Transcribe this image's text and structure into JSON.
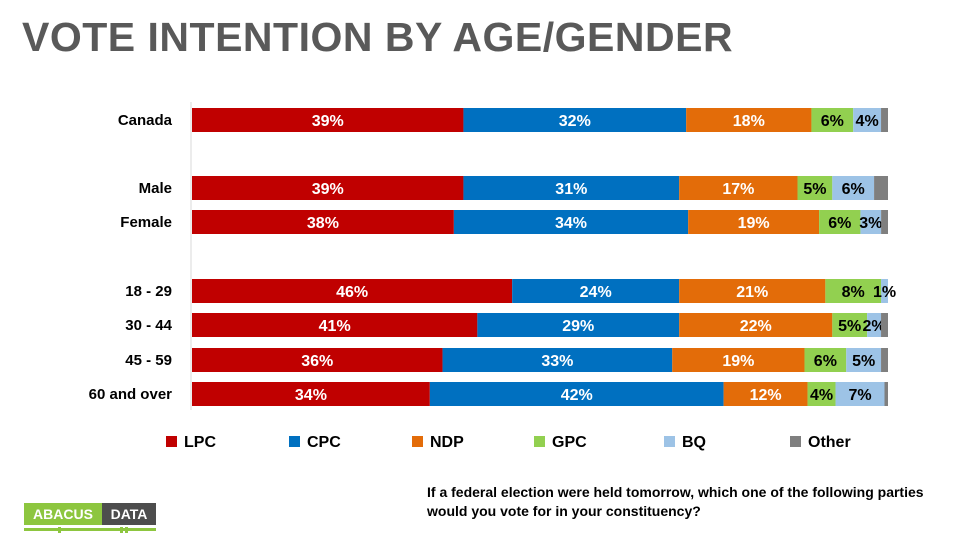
{
  "title": "VOTE INTENTION BY AGE/GENDER",
  "question": "If a federal election were held tomorrow, which one of the following parties would you vote for in your constituency?",
  "logo": {
    "left": "ABACUS",
    "right": "DATA"
  },
  "chart_data": {
    "type": "bar",
    "orientation": "horizontal",
    "stacked": true,
    "percent_scale": true,
    "legend_position": "bottom",
    "categories": [
      "Canada",
      "Male",
      "Female",
      "18 - 29",
      "30 - 44",
      "45 - 59",
      "60 and over"
    ],
    "series": [
      {
        "name": "LPC",
        "color": "#c00000",
        "values": [
          39,
          39,
          38,
          46,
          41,
          36,
          34
        ]
      },
      {
        "name": "CPC",
        "color": "#0070c0",
        "values": [
          32,
          31,
          34,
          24,
          29,
          33,
          42
        ]
      },
      {
        "name": "NDP",
        "color": "#e36c09",
        "values": [
          18,
          17,
          19,
          21,
          22,
          19,
          12
        ]
      },
      {
        "name": "GPC",
        "color": "#92d050",
        "values": [
          6,
          5,
          6,
          8,
          5,
          6,
          4
        ]
      },
      {
        "name": "BQ",
        "color": "#9dc3e6",
        "values": [
          4,
          6,
          3,
          1,
          2,
          5,
          7
        ]
      },
      {
        "name": "Other",
        "color": "#7f7f7f",
        "values": [
          1,
          2,
          1,
          0,
          1,
          1,
          0.5
        ]
      }
    ],
    "data_labels": [
      [
        "39%",
        "32%",
        "18%",
        "6%",
        "4%",
        ""
      ],
      [
        "39%",
        "31%",
        "17%",
        "5%",
        "6%",
        ""
      ],
      [
        "38%",
        "34%",
        "19%",
        "6%",
        "3%",
        ""
      ],
      [
        "46%",
        "24%",
        "21%",
        "8%",
        "1%",
        ""
      ],
      [
        "41%",
        "29%",
        "22%",
        "5%",
        "2%",
        ""
      ],
      [
        "36%",
        "33%",
        "19%",
        "6%",
        "5%",
        ""
      ],
      [
        "34%",
        "42%",
        "12%",
        "4%",
        "7%",
        ""
      ]
    ]
  }
}
